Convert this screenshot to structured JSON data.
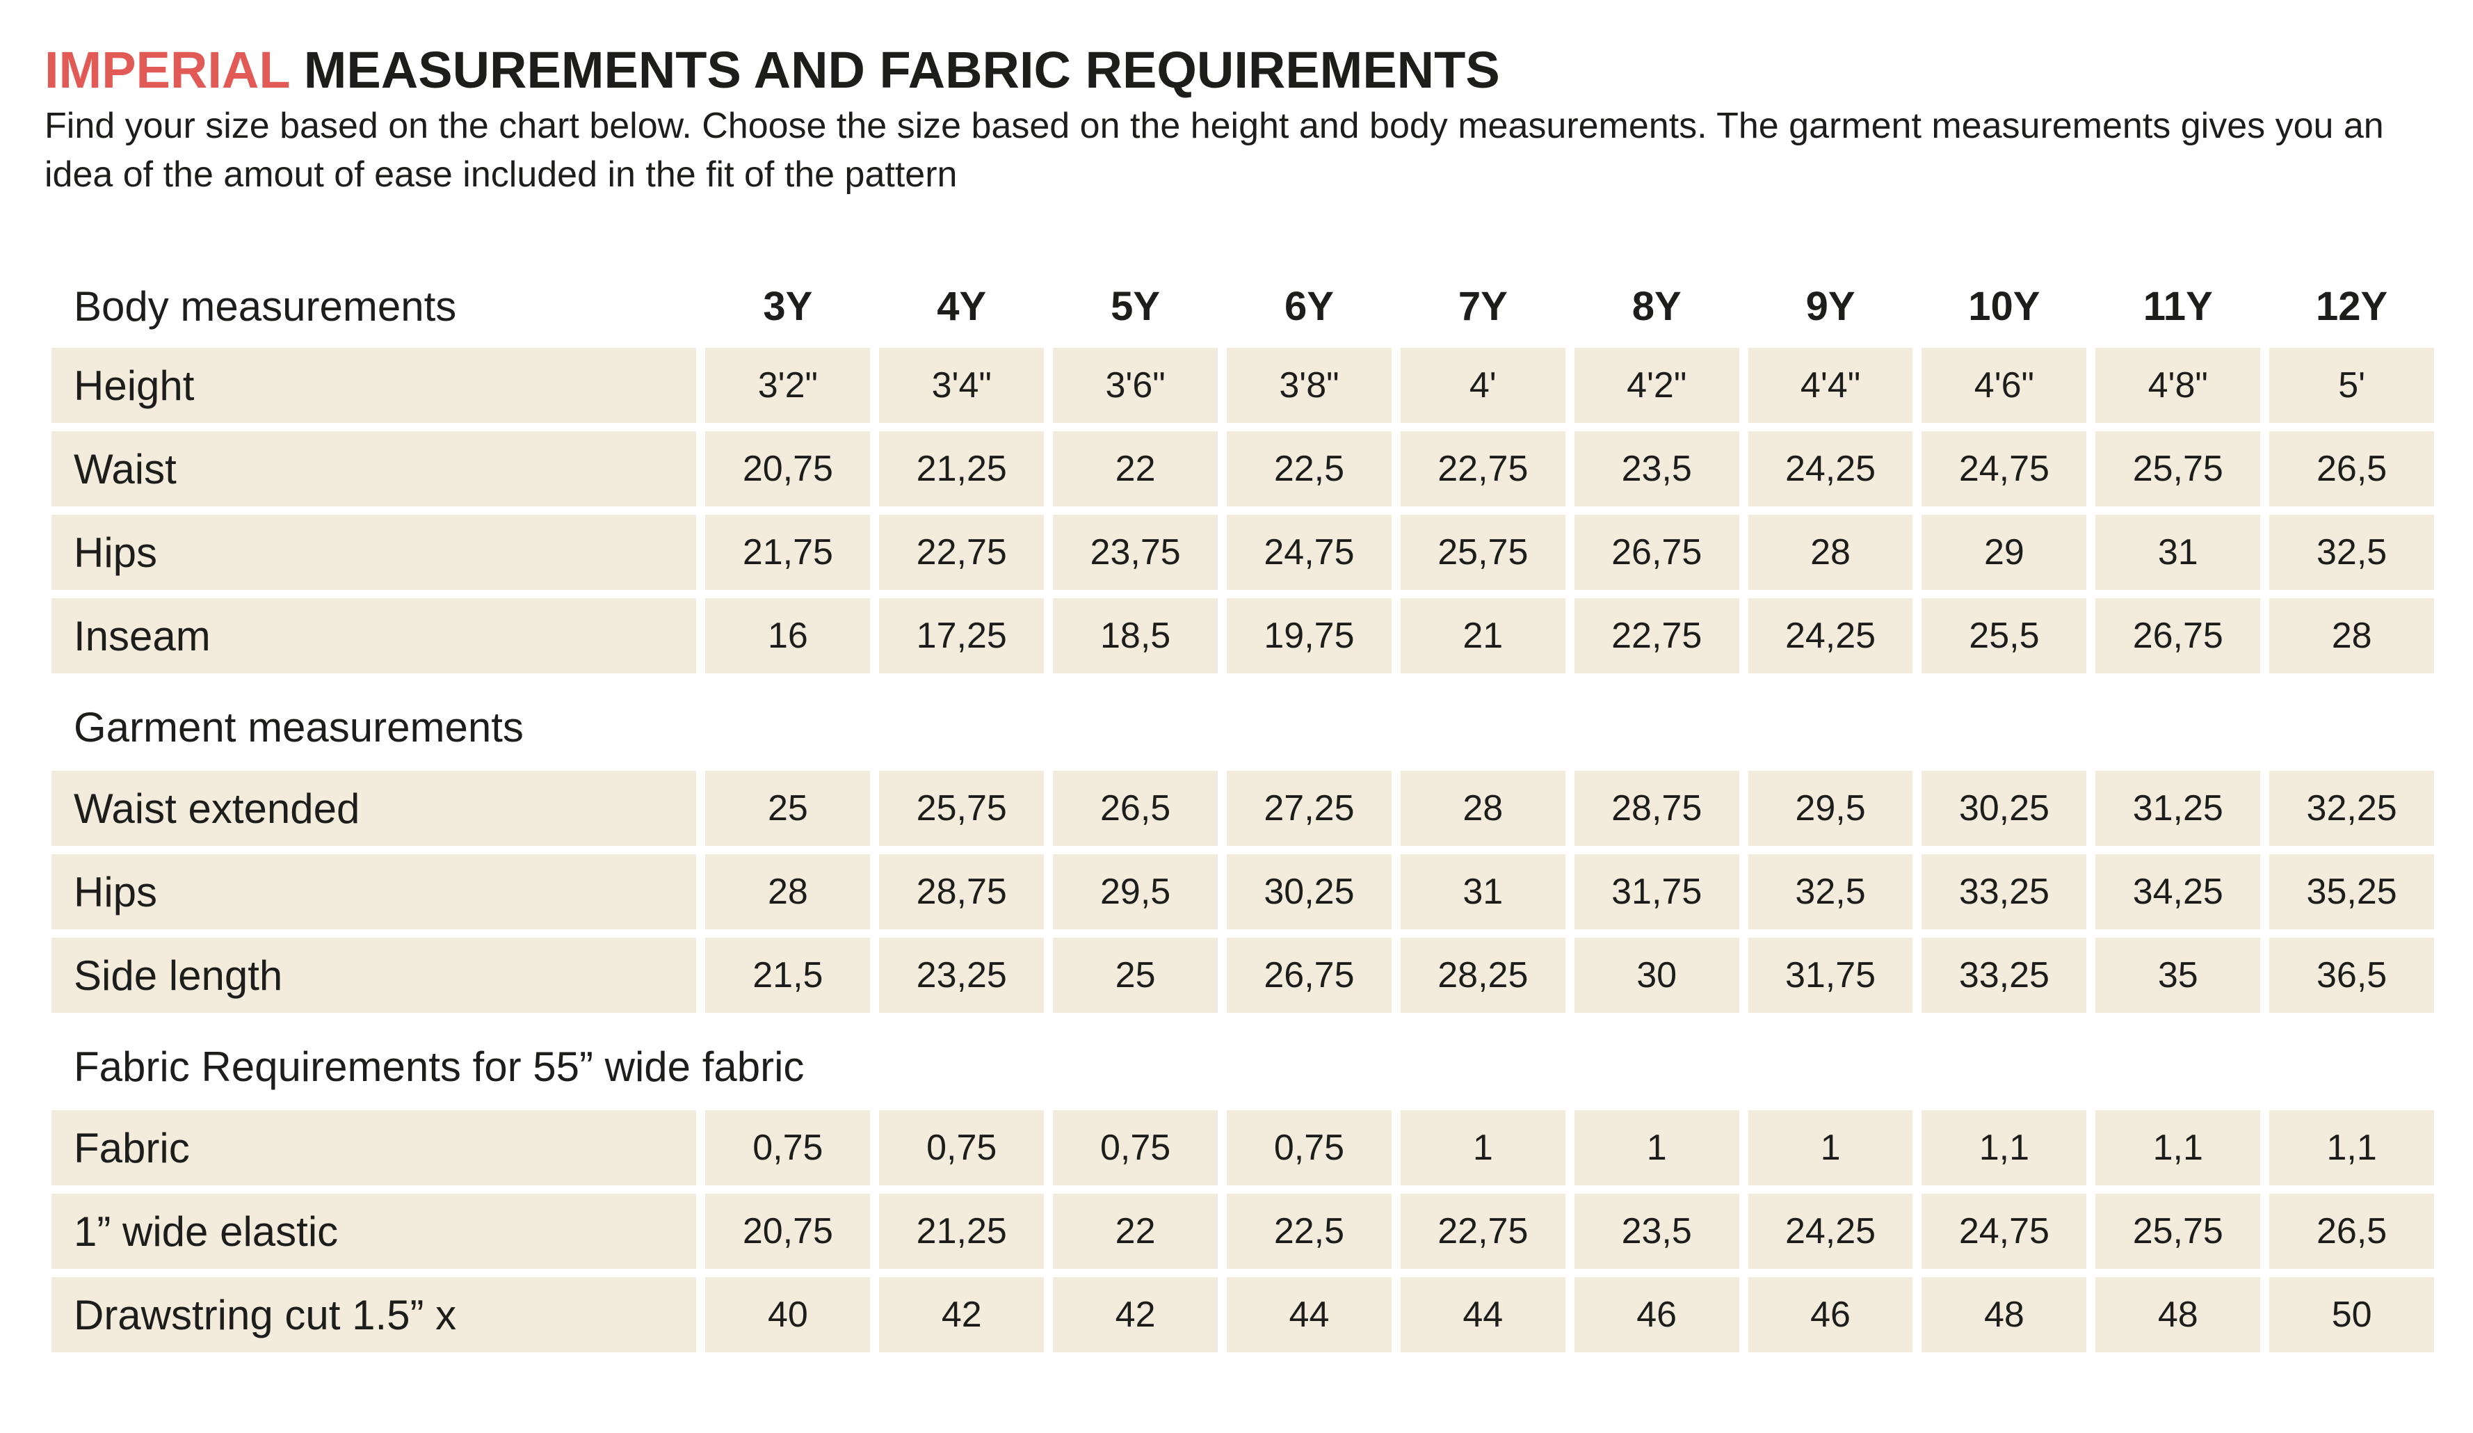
{
  "title": {
    "accent": "IMPERIAL",
    "rest": " MEASUREMENTS AND FABRIC REQUIREMENTS"
  },
  "intro": "Find your size based on the chart below. Choose the size based on the height and body measurements. The garment measurements gives you an idea of the amout of ease included in the fit of the pattern",
  "colors": {
    "accent": "#e25a55",
    "cell_bg": "#f3ecdd",
    "text": "#1d1d1b"
  },
  "sections": {
    "body": "Body measurements",
    "garment": "Garment measurements",
    "fabric": "Fabric Requirements for  55” wide fabric"
  },
  "sizes": [
    "3Y",
    "4Y",
    "5Y",
    "6Y",
    "7Y",
    "8Y",
    "9Y",
    "10Y",
    "11Y",
    "12Y"
  ],
  "body_rows": [
    {
      "label": "Height",
      "values": [
        "3'2\"",
        "3'4\"",
        "3'6\"",
        "3'8\"",
        "4'",
        "4'2\"",
        "4'4\"",
        "4'6\"",
        "4'8\"",
        "5'"
      ]
    },
    {
      "label": "Waist",
      "values": [
        "20,75",
        "21,25",
        "22",
        "22,5",
        "22,75",
        "23,5",
        "24,25",
        "24,75",
        "25,75",
        "26,5"
      ]
    },
    {
      "label": "Hips",
      "values": [
        "21,75",
        "22,75",
        "23,75",
        "24,75",
        "25,75",
        "26,75",
        "28",
        "29",
        "31",
        "32,5"
      ]
    },
    {
      "label": "Inseam",
      "values": [
        "16",
        "17,25",
        "18,5",
        "19,75",
        "21",
        "22,75",
        "24,25",
        "25,5",
        "26,75",
        "28"
      ]
    }
  ],
  "garment_rows": [
    {
      "label": "Waist extended",
      "values": [
        "25",
        "25,75",
        "26,5",
        "27,25",
        "28",
        "28,75",
        "29,5",
        "30,25",
        "31,25",
        "32,25"
      ]
    },
    {
      "label": "Hips",
      "values": [
        "28",
        "28,75",
        "29,5",
        "30,25",
        "31",
        "31,75",
        "32,5",
        "33,25",
        "34,25",
        "35,25"
      ]
    },
    {
      "label": "Side length",
      "values": [
        "21,5",
        "23,25",
        "25",
        "26,75",
        "28,25",
        "30",
        "31,75",
        "33,25",
        "35",
        "36,5"
      ]
    }
  ],
  "fabric_rows": [
    {
      "label": "Fabric",
      "values": [
        "0,75",
        "0,75",
        "0,75",
        "0,75",
        "1",
        "1",
        "1",
        "1,1",
        "1,1",
        "1,1"
      ]
    },
    {
      "label": "1” wide elastic",
      "values": [
        "20,75",
        "21,25",
        "22",
        "22,5",
        "22,75",
        "23,5",
        "24,25",
        "24,75",
        "25,75",
        "26,5"
      ]
    },
    {
      "label": "Drawstring cut 1.5” x",
      "values": [
        "40",
        "42",
        "42",
        "44",
        "44",
        "46",
        "46",
        "48",
        "48",
        "50"
      ]
    }
  ]
}
